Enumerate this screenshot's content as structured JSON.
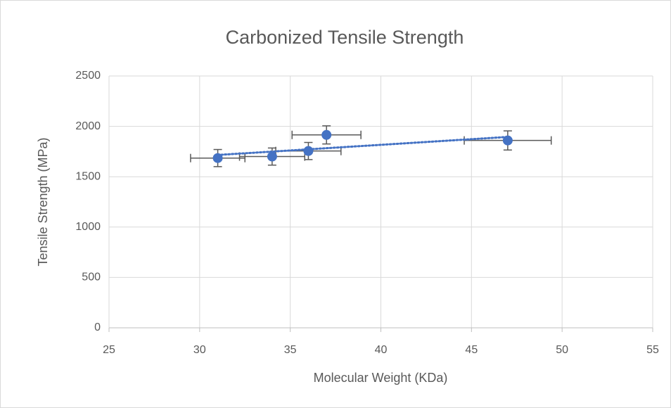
{
  "chart_data": {
    "type": "scatter",
    "title": "Carbonized Tensile Strength",
    "x_label": "Molecular Weight (KDa)",
    "y_label": "Tensile Strength (MPa)",
    "series": [
      {
        "color": "#4472c4",
        "error_color": "#595959",
        "x": [
          31,
          34,
          36,
          37,
          47
        ],
        "values": [
          1685,
          1700,
          1755,
          1915,
          1860
        ],
        "y_errors": [
          85,
          85,
          85,
          90,
          95
        ],
        "x_errors": [
          1.5,
          1.8,
          1.8,
          1.9,
          2.4
        ]
      }
    ],
    "trendline": "linear",
    "trendline_color": "#4472c4",
    "xlim": [
      25,
      55
    ],
    "xticks": [
      25,
      30,
      35,
      40,
      45,
      50,
      55
    ],
    "ylim": [
      0,
      2500
    ],
    "yticks": [
      0,
      500,
      1000,
      1500,
      2000,
      2500
    ],
    "grid": true
  }
}
